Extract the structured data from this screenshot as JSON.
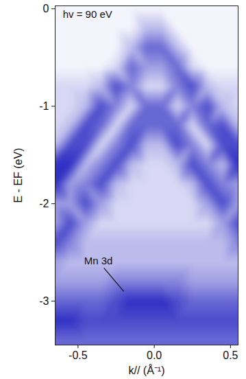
{
  "chart_data": {
    "type": "heatmap",
    "x_label": "k// (Å⁻¹)",
    "y_label": "E - EF (eV)",
    "xlim": [
      -0.65,
      0.55
    ],
    "ylim": [
      -3.45,
      0.03
    ],
    "xticks": [
      -0.5,
      {
        "value": 0,
        "label": "0.0"
      },
      0.5
    ],
    "yticks": [
      0,
      -1,
      -2,
      -3
    ],
    "grid": false,
    "x": [
      -0.65,
      -0.55,
      -0.45,
      -0.35,
      -0.25,
      -0.15,
      -0.05,
      0.05,
      0.15,
      0.25,
      0.35,
      0.45,
      0.55
    ],
    "y": [
      0.0,
      -0.2,
      -0.4,
      -0.6,
      -0.8,
      -1.0,
      -1.2,
      -1.4,
      -1.6,
      -1.8,
      -2.0,
      -2.2,
      -2.4,
      -2.6,
      -2.8,
      -3.0,
      -3.2,
      -3.4
    ],
    "cells": [
      [
        1,
        1,
        1,
        1,
        1,
        1,
        1,
        1,
        1,
        1,
        1,
        1,
        1
      ],
      [
        1,
        1,
        1,
        1,
        1,
        1,
        3,
        3,
        1,
        1,
        1,
        1,
        1
      ],
      [
        1,
        1,
        1,
        1,
        1,
        3,
        6,
        6,
        3,
        1,
        1,
        1,
        1
      ],
      [
        1,
        1,
        1,
        1,
        2,
        6,
        4,
        4,
        6,
        2,
        1,
        1,
        1
      ],
      [
        2,
        2,
        2,
        3,
        7,
        5,
        2,
        2,
        5,
        7,
        3,
        2,
        2
      ],
      [
        2,
        2,
        3,
        7,
        5,
        2,
        6,
        6,
        2,
        5,
        7,
        3,
        2
      ],
      [
        2,
        3,
        7,
        6,
        2,
        6,
        6,
        6,
        6,
        2,
        6,
        7,
        3
      ],
      [
        3,
        7,
        7,
        2,
        5,
        7,
        3,
        3,
        7,
        5,
        2,
        7,
        7
      ],
      [
        8,
        8,
        3,
        5,
        7,
        3,
        2,
        2,
        3,
        7,
        5,
        3,
        8
      ],
      [
        8,
        4,
        5,
        7,
        3,
        2,
        2,
        2,
        2,
        3,
        7,
        5,
        4
      ],
      [
        4,
        4,
        7,
        4,
        2,
        2,
        2,
        2,
        2,
        2,
        4,
        7,
        4
      ],
      [
        4,
        7,
        4,
        2,
        2,
        2,
        2,
        2,
        2,
        2,
        2,
        4,
        7
      ],
      [
        7,
        5,
        3,
        3,
        3,
        3,
        3,
        3,
        3,
        3,
        3,
        3,
        5
      ],
      [
        4,
        3,
        3,
        3,
        3,
        3,
        3,
        3,
        3,
        3,
        3,
        3,
        3
      ],
      [
        4,
        4,
        4,
        4,
        5,
        5,
        5,
        5,
        5,
        4,
        4,
        4,
        4
      ],
      [
        6,
        6,
        6,
        6,
        7,
        8,
        8,
        8,
        7,
        6,
        6,
        6,
        6
      ],
      [
        8,
        8,
        7,
        7,
        7,
        7,
        7,
        7,
        7,
        7,
        7,
        7,
        7
      ],
      [
        6,
        6,
        6,
        6,
        6,
        6,
        6,
        6,
        6,
        6,
        6,
        6,
        6
      ]
    ],
    "annotations": [
      {
        "text": "hv = 90 eV",
        "x": -0.6,
        "y": -0.02
      },
      {
        "text": "Mn 3d",
        "x": -0.46,
        "y": -2.55,
        "arrow_from": [
          -0.33,
          -2.66
        ],
        "arrow_to": [
          -0.2,
          -2.9
        ]
      }
    ]
  }
}
